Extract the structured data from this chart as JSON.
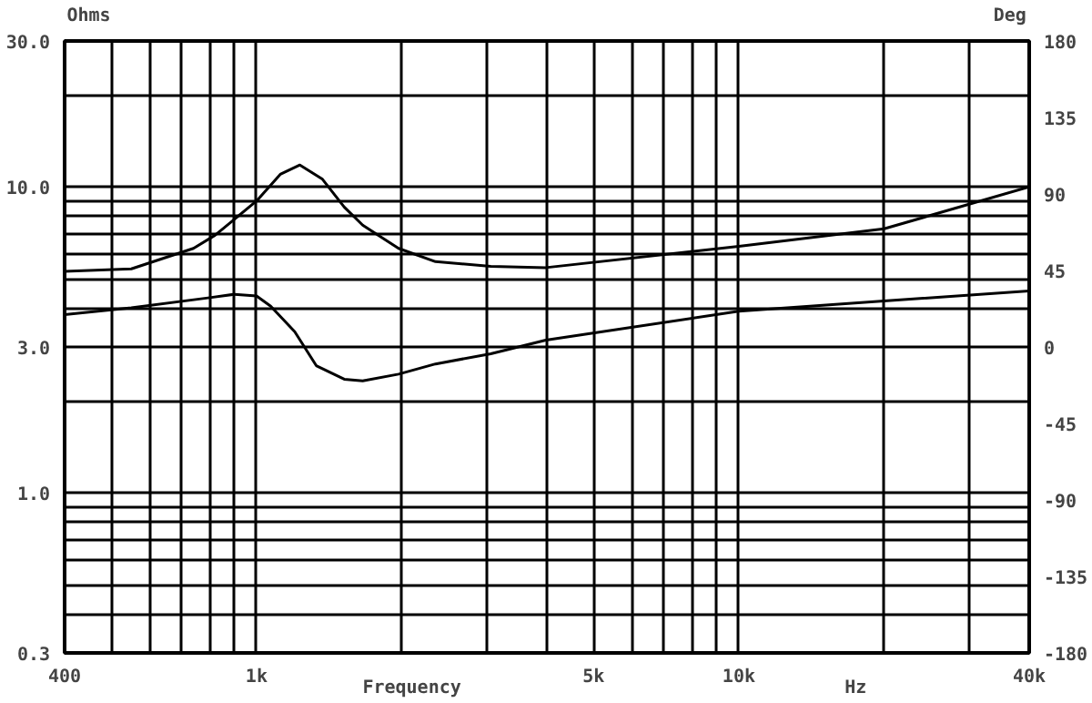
{
  "chart_data": {
    "type": "line",
    "xlabel": "Frequency",
    "ylabel": "Ohms",
    "y2label": "Deg",
    "annotations": [
      "Hz"
    ],
    "log": "xy",
    "grid": true,
    "line_style": "solid",
    "marker": "none",
    "xlim": [
      400,
      40000
    ],
    "ylim": [
      0.3,
      30
    ],
    "y2lim": [
      -180,
      180
    ],
    "xticks": [
      400,
      {
        "value": 500,
        "label": null
      },
      {
        "value": 600,
        "label": null
      },
      {
        "value": 700,
        "label": null
      },
      {
        "value": 800,
        "label": null
      },
      {
        "value": 900,
        "label": null
      },
      {
        "value": 1000,
        "label": "1k"
      },
      {
        "value": 2000,
        "label": null
      },
      {
        "value": 3000,
        "label": null
      },
      {
        "value": 4000,
        "label": null
      },
      {
        "value": 5000,
        "label": "5k"
      },
      {
        "value": 6000,
        "label": null
      },
      {
        "value": 7000,
        "label": null
      },
      {
        "value": 8000,
        "label": null
      },
      {
        "value": 9000,
        "label": null
      },
      {
        "value": 10000,
        "label": "10k"
      },
      {
        "value": 20000,
        "label": null
      },
      {
        "value": 30000,
        "label": null
      },
      {
        "value": 40000,
        "label": "40k"
      }
    ],
    "yticks": [
      {
        "value": 0.3,
        "label": "0.3"
      },
      {
        "value": 0.4,
        "label": null
      },
      {
        "value": 0.5,
        "label": null
      },
      {
        "value": 0.6,
        "label": null
      },
      {
        "value": 0.7,
        "label": null
      },
      {
        "value": 0.8,
        "label": null
      },
      {
        "value": 0.9,
        "label": null
      },
      {
        "value": 1,
        "label": "1.0"
      },
      {
        "value": 2,
        "label": null
      },
      {
        "value": 3,
        "label": "3.0"
      },
      {
        "value": 4,
        "label": null
      },
      {
        "value": 5,
        "label": null
      },
      {
        "value": 6,
        "label": null
      },
      {
        "value": 7,
        "label": null
      },
      {
        "value": 8,
        "label": null
      },
      {
        "value": 9,
        "label": null
      },
      {
        "value": 10,
        "label": "10.0"
      },
      {
        "value": 20,
        "label": null
      },
      {
        "value": 30,
        "label": "30.0"
      }
    ],
    "y2ticks": [
      -180,
      -135,
      -90,
      -45,
      0,
      45,
      90,
      135,
      180
    ],
    "series": [
      {
        "color": "#000000",
        "x": [
          400,
          550,
          740,
          820,
          1000,
          1120,
          1230,
          1370,
          1520,
          1660,
          1970,
          2350,
          3060,
          3980,
          10000,
          20000,
          40000
        ],
        "values": [
          5.3,
          5.4,
          6.3,
          6.95,
          9.0,
          11.0,
          11.8,
          10.6,
          8.6,
          7.5,
          6.3,
          5.7,
          5.5,
          5.45,
          6.4,
          7.3,
          10.0
        ]
      },
      {
        "color": "#000000",
        "axis": "y2",
        "x": [
          400,
          550,
          800,
          900,
          1000,
          1070,
          1200,
          1330,
          1520,
          1660,
          1970,
          2350,
          3060,
          3980,
          10000,
          20000,
          40000
        ],
        "values": [
          19,
          23,
          29,
          31,
          30,
          24,
          9,
          -11,
          -19,
          -20,
          -16,
          -10,
          -4,
          4,
          21,
          27,
          33
        ]
      }
    ]
  }
}
